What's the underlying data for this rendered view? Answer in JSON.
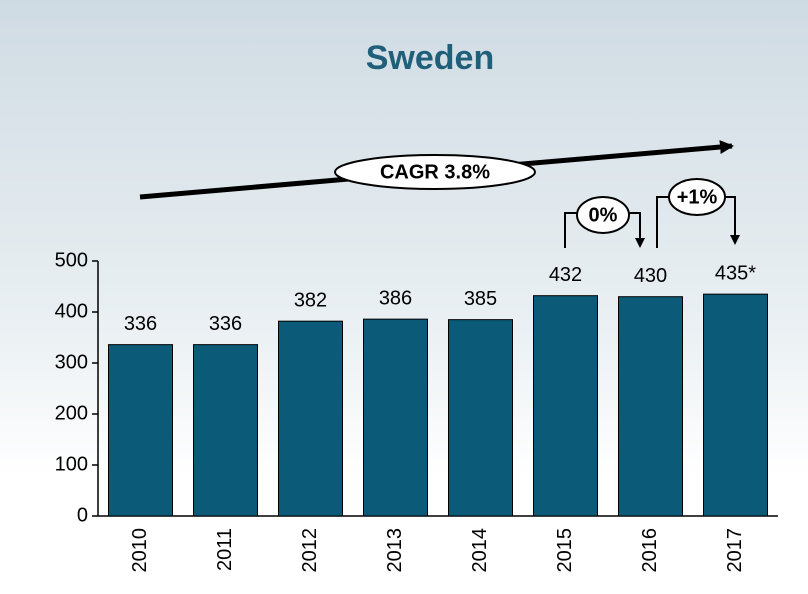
{
  "chart_data": {
    "type": "bar",
    "title": "Sweden",
    "categories": [
      "2010",
      "2011",
      "2012",
      "2013",
      "2014",
      "2015",
      "2016",
      "2017"
    ],
    "values": [
      336,
      336,
      382,
      386,
      385,
      432,
      430,
      435
    ],
    "value_labels": [
      "336",
      "336",
      "382",
      "386",
      "385",
      "432",
      "430",
      "435*"
    ],
    "color": "#0b5a78",
    "ylim": [
      0,
      500
    ],
    "yticks": [
      0,
      100,
      200,
      300,
      400,
      500
    ],
    "grid": false,
    "annotations": [
      "CAGR 3.8%",
      "0%",
      "+1%"
    ]
  }
}
